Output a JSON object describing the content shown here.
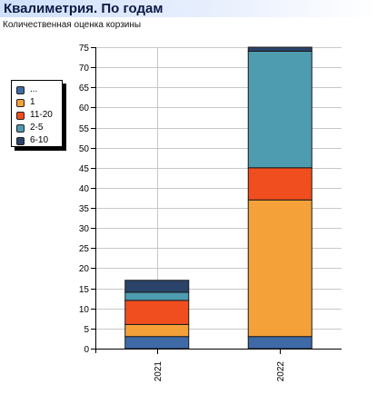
{
  "header": {
    "title": "Квалиметрия. По годам",
    "subtitle": "Количественная оценка корзины"
  },
  "legend": {
    "items": [
      {
        "label": "...",
        "color": "#3f6aa7"
      },
      {
        "label": "1",
        "color": "#f4a13a"
      },
      {
        "label": "11-20",
        "color": "#f04e1e"
      },
      {
        "label": "2-5",
        "color": "#4e9cb0"
      },
      {
        "label": "6-10",
        "color": "#2a4368"
      }
    ]
  },
  "chart_data": {
    "type": "bar",
    "stacked": true,
    "categories": [
      "2021",
      "2022"
    ],
    "series": [
      {
        "name": "...",
        "color": "#3f6aa7",
        "values": [
          3,
          3
        ]
      },
      {
        "name": "1",
        "color": "#f4a13a",
        "values": [
          3,
          34
        ]
      },
      {
        "name": "11-20",
        "color": "#f04e1e",
        "values": [
          6,
          8
        ]
      },
      {
        "name": "2-5",
        "color": "#4e9cb0",
        "values": [
          2,
          29
        ]
      },
      {
        "name": "6-10",
        "color": "#2a4368",
        "values": [
          3,
          1
        ]
      }
    ],
    "title": "Квалиметрия. По годам",
    "subtitle": "Количественная оценка корзины",
    "ylim": [
      0,
      75
    ],
    "yticks": [
      "0",
      "5",
      "10",
      "15",
      "20",
      "25",
      "30",
      "35",
      "40",
      "45",
      "50",
      "55",
      "60",
      "65",
      "70",
      "75"
    ],
    "grid": true,
    "legend_position": "left"
  }
}
